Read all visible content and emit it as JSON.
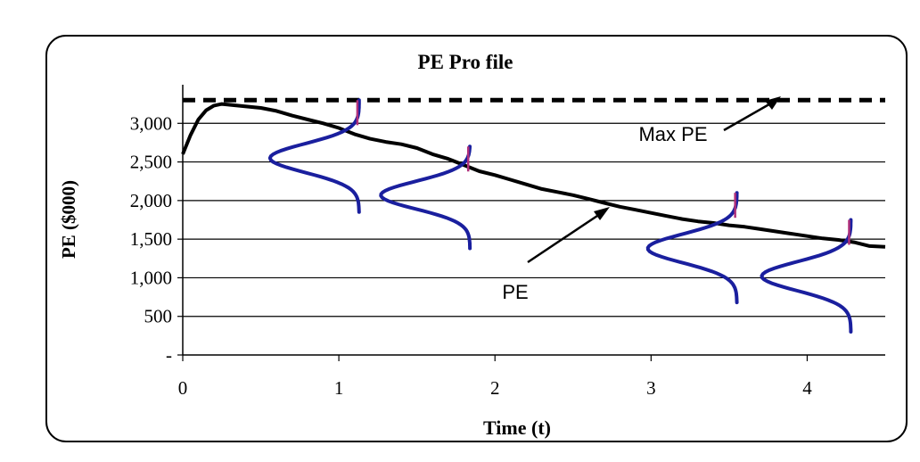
{
  "chart_data": {
    "type": "line",
    "title": "PE Pro file",
    "xlabel": "Time  (t)",
    "ylabel": "PE ($000)",
    "xlim": [
      0,
      4.5
    ],
    "ylim": [
      0,
      3500
    ],
    "x_ticks": [
      0,
      1,
      2,
      3,
      4
    ],
    "x_tick_labels": [
      "0",
      "1",
      "2",
      "3",
      "4"
    ],
    "y_ticks": [
      0,
      500,
      1000,
      1500,
      2000,
      2500,
      3000
    ],
    "y_tick_labels": [
      "-",
      "500",
      "1,000",
      "1,500",
      "2,000",
      "2,500",
      "3,000"
    ],
    "grid": "horizontal",
    "legend": "none",
    "series": [
      {
        "x": [
          0,
          0.05,
          0.1,
          0.15,
          0.2,
          0.25,
          0.3,
          0.4,
          0.5,
          0.6,
          0.7,
          0.8,
          0.9,
          1.0,
          1.1,
          1.2,
          1.3,
          1.4,
          1.5,
          1.6,
          1.7,
          1.8,
          1.9,
          2.0,
          2.1,
          2.2,
          2.3,
          2.4,
          2.5,
          2.6,
          2.7,
          2.8,
          2.9,
          3.0,
          3.1,
          3.2,
          3.3,
          3.4,
          3.5,
          3.6,
          3.7,
          3.8,
          3.9,
          4.0,
          4.1,
          4.2,
          4.3,
          4.4,
          4.5
        ],
        "values": [
          2600,
          2850,
          3050,
          3170,
          3230,
          3250,
          3240,
          3220,
          3200,
          3160,
          3100,
          3050,
          3000,
          2940,
          2860,
          2800,
          2760,
          2730,
          2680,
          2600,
          2540,
          2460,
          2380,
          2330,
          2270,
          2210,
          2150,
          2110,
          2070,
          2020,
          1970,
          1920,
          1880,
          1840,
          1800,
          1760,
          1730,
          1710,
          1680,
          1660,
          1630,
          1600,
          1570,
          1540,
          1510,
          1490,
          1460,
          1410,
          1400
        ]
      },
      {
        "style": "dashed",
        "x": [
          0,
          4.5
        ],
        "values": [
          3300,
          3300
        ]
      }
    ],
    "distributions": [
      {
        "t": 1.13,
        "center": 2550,
        "spread": 560,
        "low": 1850,
        "high": 3300
      },
      {
        "t": 1.84,
        "center": 2070,
        "spread": 540,
        "low": 1380,
        "high": 2700
      },
      {
        "t": 3.55,
        "center": 1380,
        "spread": 560,
        "low": 680,
        "high": 2100
      },
      {
        "t": 4.28,
        "center": 1020,
        "spread": 560,
        "low": 300,
        "high": 1750
      }
    ],
    "annotations": [
      {
        "text": "Max PE",
        "points_to": "dashed max line"
      },
      {
        "text": "PE",
        "points_to": "solid PE curve"
      }
    ]
  }
}
